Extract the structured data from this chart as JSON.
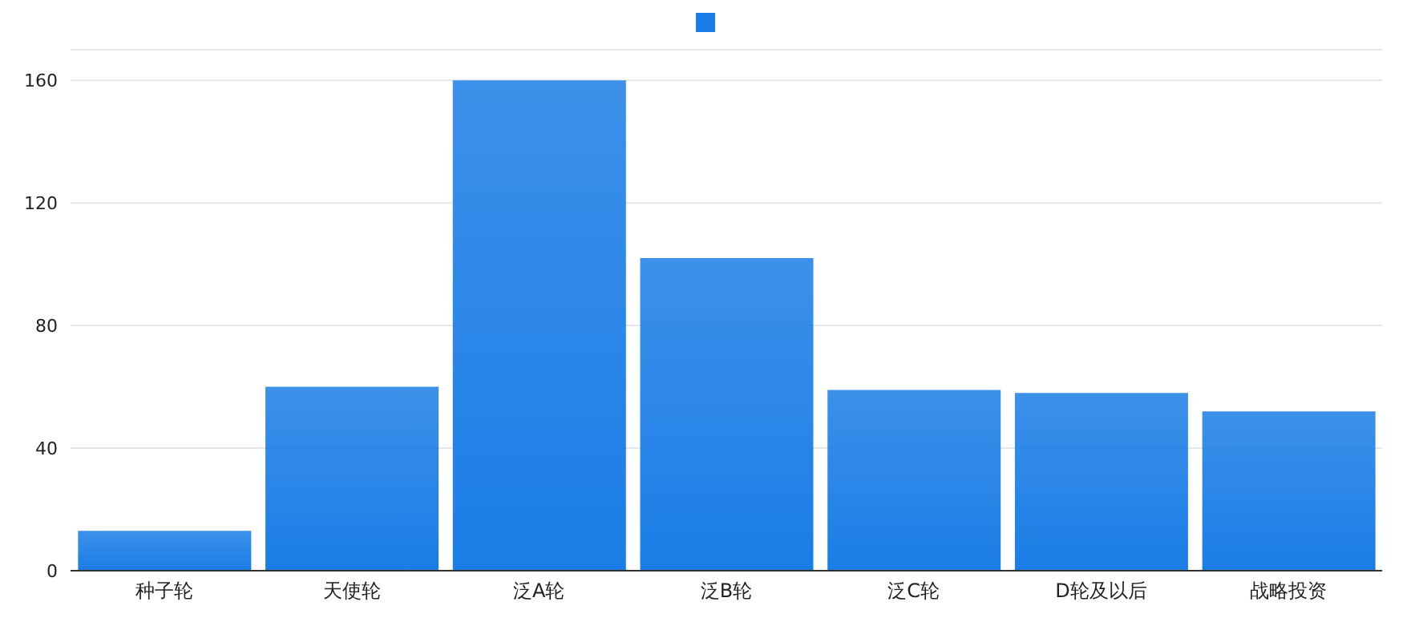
{
  "chart_data": {
    "type": "bar",
    "categories": [
      "种子轮",
      "天使轮",
      "泛A轮",
      "泛B轮",
      "泛C轮",
      "D轮及以后",
      "战略投资"
    ],
    "values": [
      13,
      60,
      160,
      102,
      59,
      58,
      52
    ],
    "color": "#1a7de6",
    "ylim": [
      0,
      170
    ],
    "yticks": [
      0,
      40,
      80,
      120,
      160
    ],
    "grid": "y"
  }
}
